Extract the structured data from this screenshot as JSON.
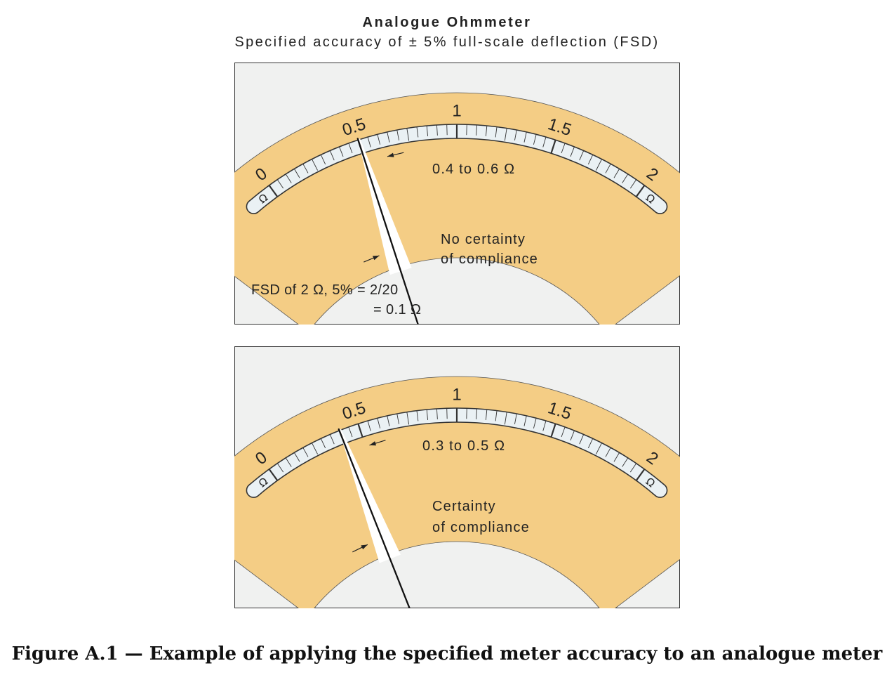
{
  "figure": {
    "title": "Analogue Ohmmeter",
    "subtitle": "Specified accuracy of ± 5% full-scale deflection (FSD)",
    "caption": "Figure A.1 — Example of applying the specified meter accuracy to an analogue meter"
  },
  "scale": {
    "labels": [
      "0",
      "0.5",
      "1",
      "1.5",
      "2"
    ],
    "ohm_symbol": "Ω",
    "full_scale": 2
  },
  "colors": {
    "dial_band": "#f4cd85",
    "scale_strip": "#eaf1f4",
    "panel_background": "#f0f1f0",
    "needle": "#111111",
    "uncertainty_wedge": "#ffffff"
  },
  "meters": [
    {
      "reading": 0.5,
      "band_low": 0.4,
      "band_high": 0.6,
      "range_label": "0.4  to  0.6  Ω",
      "verdict_line1": "No  certainty",
      "verdict_line2": "of  compliance",
      "fsd_line1": "FSD  of  2  Ω,  5%   = 2/20",
      "fsd_line2": "= 0.1  Ω"
    },
    {
      "reading": 0.4,
      "band_low": 0.3,
      "band_high": 0.5,
      "range_label": "0.3  to  0.5  Ω",
      "verdict_line1": "Certainty",
      "verdict_line2": "of  compliance"
    }
  ]
}
